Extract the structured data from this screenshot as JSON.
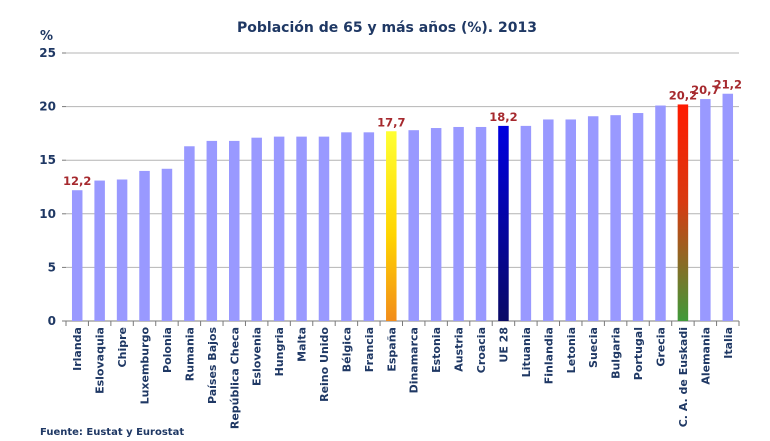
{
  "chart_data": {
    "type": "bar",
    "title": "Población de 65 y más años (%). 2013",
    "ylabel": "%",
    "xlabel": "",
    "ylim": [
      0,
      25
    ],
    "yticks": [
      0,
      5,
      10,
      15,
      20,
      25
    ],
    "grid": true,
    "categories": [
      "Irlanda",
      "Eslovaquia",
      "Chipre",
      "Luxemburgo",
      "Polonia",
      "Rumania",
      "Países Bajos",
      "República Checa",
      "Eslovenia",
      "Hungria",
      "Malta",
      "Reino Unido",
      "Bélgica",
      "Francia",
      "España",
      "Dinamarca",
      "Estonia",
      "Austria",
      "Croacia",
      "UE 28",
      "Lituania",
      "Finlandia",
      "Letonia",
      "Suecia",
      "Bulgaria",
      "Portugal",
      "Grecia",
      "C. A. de Euskadi",
      "Alemania",
      "Italia"
    ],
    "values": [
      12.2,
      13.1,
      13.2,
      14.0,
      14.2,
      16.3,
      16.8,
      16.8,
      17.1,
      17.2,
      17.2,
      17.2,
      17.6,
      17.6,
      17.7,
      17.8,
      18.0,
      18.1,
      18.1,
      18.2,
      18.2,
      18.8,
      18.8,
      19.1,
      19.2,
      19.4,
      20.1,
      20.2,
      20.7,
      21.2
    ],
    "data_labels": [
      {
        "category": "Irlanda",
        "text": "12,2"
      },
      {
        "category": "España",
        "text": "17,7"
      },
      {
        "category": "UE 28",
        "text": "18,2"
      },
      {
        "category": "C. A. de Euskadi",
        "text": "20,2"
      },
      {
        "category": "Alemania",
        "text": "20,7"
      },
      {
        "category": "Italia",
        "text": "21,2"
      }
    ],
    "colors": {
      "default_bar": "#9999ff",
      "España": "gradient-yellow-orange",
      "UE 28": "gradient-navy",
      "C. A. de Euskadi": "gradient-red-green",
      "data_label": "#a6292e",
      "text": "#1f3864",
      "grid": "#b4b4b4"
    }
  },
  "source": "Fuente: Eustat y Eurostat"
}
